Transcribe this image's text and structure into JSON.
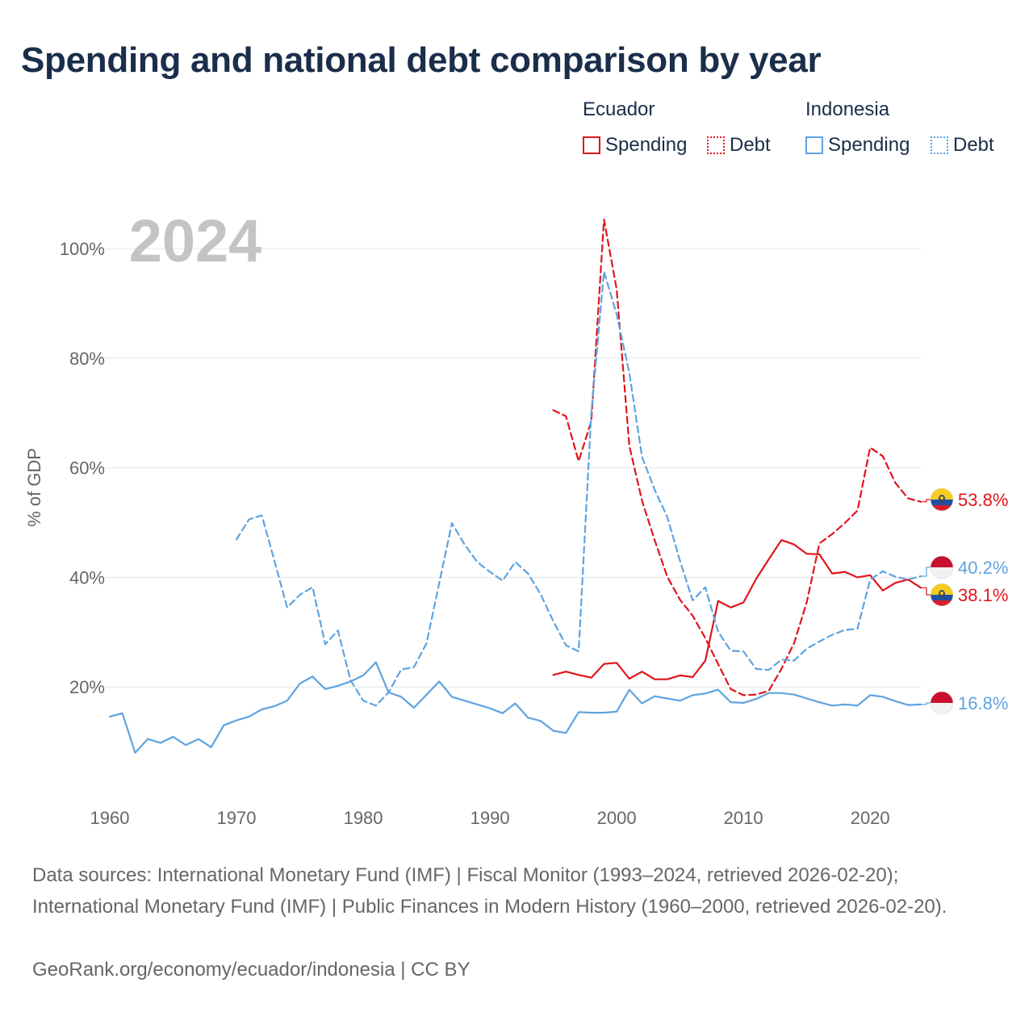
{
  "title": "Spending and national debt comparison by year",
  "legend": {
    "groups": [
      {
        "name": "Ecuador",
        "items": [
          "Spending",
          "Debt"
        ]
      },
      {
        "name": "Indonesia",
        "items": [
          "Spending",
          "Debt"
        ]
      }
    ]
  },
  "colors": {
    "ecuador": "#e0151c",
    "indonesia": "#5fa3e0"
  },
  "chart_data": {
    "type": "line",
    "title": "Spending and national debt comparison by year",
    "year_label": "2024",
    "ylabel": "% of GDP",
    "xlabel": "",
    "xlim": [
      1960,
      2024
    ],
    "ylim": [
      0,
      105
    ],
    "x_ticks": [
      "1960",
      "1970",
      "1980",
      "1990",
      "2000",
      "2010",
      "2020"
    ],
    "y_ticks": [
      {
        "value": 20,
        "label": "20%"
      },
      {
        "value": 40,
        "label": "40%"
      },
      {
        "value": 60,
        "label": "60%"
      },
      {
        "value": 80,
        "label": "80%"
      },
      {
        "value": 100,
        "label": "100%"
      }
    ],
    "series": [
      {
        "name": "Ecuador Spending",
        "country": "Ecuador",
        "metric": "Spending",
        "style": "solid",
        "color": "#e0151c",
        "end_label": "38.1%",
        "x": [
          1995,
          1996,
          1997,
          1998,
          1999,
          2000,
          2001,
          2002,
          2003,
          2004,
          2005,
          2006,
          2007,
          2008,
          2009,
          2010,
          2011,
          2012,
          2013,
          2014,
          2015,
          2016,
          2017,
          2018,
          2019,
          2020,
          2021,
          2022,
          2023,
          2024
        ],
        "values": [
          22.2,
          22.8,
          22.2,
          21.7,
          24.2,
          24.4,
          21.5,
          22.8,
          21.4,
          21.4,
          22.1,
          21.8,
          24.8,
          35.7,
          34.5,
          35.4,
          39.7,
          43.3,
          46.8,
          46.0,
          44.3,
          44.2,
          40.7,
          41.0,
          40.0,
          40.4,
          37.6,
          39.0,
          39.6,
          38.1
        ]
      },
      {
        "name": "Ecuador Debt",
        "country": "Ecuador",
        "metric": "Debt",
        "style": "dashed",
        "color": "#e0151c",
        "end_label": "53.8%",
        "x": [
          1995,
          1996,
          1997,
          1998,
          1999,
          2000,
          2001,
          2002,
          2003,
          2004,
          2005,
          2006,
          2007,
          2008,
          2009,
          2010,
          2011,
          2012,
          2013,
          2014,
          2015,
          2016,
          2017,
          2018,
          2019,
          2020,
          2021,
          2022,
          2023,
          2024
        ],
        "values": [
          70.5,
          69.4,
          61.2,
          68.5,
          105.3,
          92.6,
          64.0,
          54.0,
          46.8,
          40.1,
          35.9,
          33.0,
          28.9,
          24.2,
          19.6,
          18.5,
          18.6,
          19.3,
          23.3,
          28.0,
          35.5,
          46.2,
          47.9,
          49.9,
          52.2,
          63.7,
          62.1,
          57.2,
          54.4,
          53.8
        ]
      },
      {
        "name": "Indonesia Spending",
        "country": "Indonesia",
        "metric": "Spending",
        "style": "solid",
        "color": "#5fa3e0",
        "end_label": "16.8%",
        "x": [
          1960,
          1961,
          1962,
          1963,
          1964,
          1965,
          1966,
          1967,
          1968,
          1969,
          1970,
          1971,
          1972,
          1973,
          1974,
          1975,
          1976,
          1977,
          1978,
          1979,
          1980,
          1981,
          1982,
          1983,
          1984,
          1985,
          1986,
          1987,
          1988,
          1989,
          1990,
          1991,
          1992,
          1993,
          1994,
          1995,
          1996,
          1997,
          1998,
          1999,
          2000,
          2001,
          2002,
          2003,
          2004,
          2005,
          2006,
          2007,
          2008,
          2009,
          2010,
          2011,
          2012,
          2013,
          2014,
          2015,
          2016,
          2017,
          2018,
          2019,
          2020,
          2021,
          2022,
          2023,
          2024
        ],
        "values": [
          14.6,
          15.2,
          8.0,
          10.5,
          9.8,
          10.9,
          9.4,
          10.5,
          9.0,
          13.0,
          13.9,
          14.6,
          15.9,
          16.5,
          17.5,
          20.6,
          21.9,
          19.6,
          20.2,
          21.0,
          22.1,
          24.5,
          19.0,
          18.2,
          16.2,
          18.6,
          21.0,
          18.2,
          17.5,
          16.8,
          16.1,
          15.2,
          17.0,
          14.4,
          13.8,
          12.0,
          11.6,
          15.4,
          15.3,
          15.3,
          15.5,
          19.5,
          17.0,
          18.3,
          17.9,
          17.5,
          18.5,
          18.8,
          19.5,
          17.2,
          17.1,
          17.8,
          18.9,
          18.9,
          18.6,
          17.9,
          17.2,
          16.6,
          16.8,
          16.6,
          18.5,
          18.2,
          17.4,
          16.7,
          16.8
        ]
      },
      {
        "name": "Indonesia Debt",
        "country": "Indonesia",
        "metric": "Debt",
        "style": "dashed",
        "color": "#5fa3e0",
        "end_label": "40.2%",
        "x": [
          1970,
          1971,
          1972,
          1973,
          1974,
          1975,
          1976,
          1977,
          1978,
          1979,
          1980,
          1981,
          1982,
          1983,
          1984,
          1985,
          1986,
          1987,
          1988,
          1989,
          1990,
          1991,
          1992,
          1993,
          1994,
          1995,
          1996,
          1997,
          1998,
          1999,
          2000,
          2001,
          2002,
          2003,
          2004,
          2005,
          2006,
          2007,
          2008,
          2009,
          2010,
          2011,
          2012,
          2013,
          2014,
          2015,
          2016,
          2017,
          2018,
          2019,
          2020,
          2021,
          2022,
          2023,
          2024
        ],
        "values": [
          46.9,
          50.6,
          51.3,
          43.0,
          34.5,
          36.8,
          38.2,
          27.8,
          30.3,
          21.2,
          17.5,
          16.6,
          19.0,
          23.2,
          23.6,
          28.0,
          39.0,
          49.9,
          46.0,
          42.8,
          41.0,
          39.4,
          42.8,
          40.7,
          36.9,
          32.0,
          27.6,
          26.5,
          70.0,
          95.8,
          88.0,
          77.3,
          62.0,
          56.0,
          51.0,
          43.0,
          35.8,
          38.2,
          30.1,
          26.6,
          26.5,
          23.3,
          23.1,
          25.0,
          24.8,
          27.0,
          28.3,
          29.5,
          30.4,
          30.6,
          39.6,
          41.1,
          40.1,
          39.6,
          40.2
        ]
      }
    ]
  },
  "footer": {
    "source": "Data sources: International Monetary Fund (IMF) | Fiscal Monitor (1993–2024, retrieved 2026-02-20); International Monetary Fund (IMF) | Public Finances in Modern History (1960–2000, retrieved 2026-02-20).",
    "credit": "GeoRank.org/economy/ecuador/indonesia | CC BY"
  }
}
